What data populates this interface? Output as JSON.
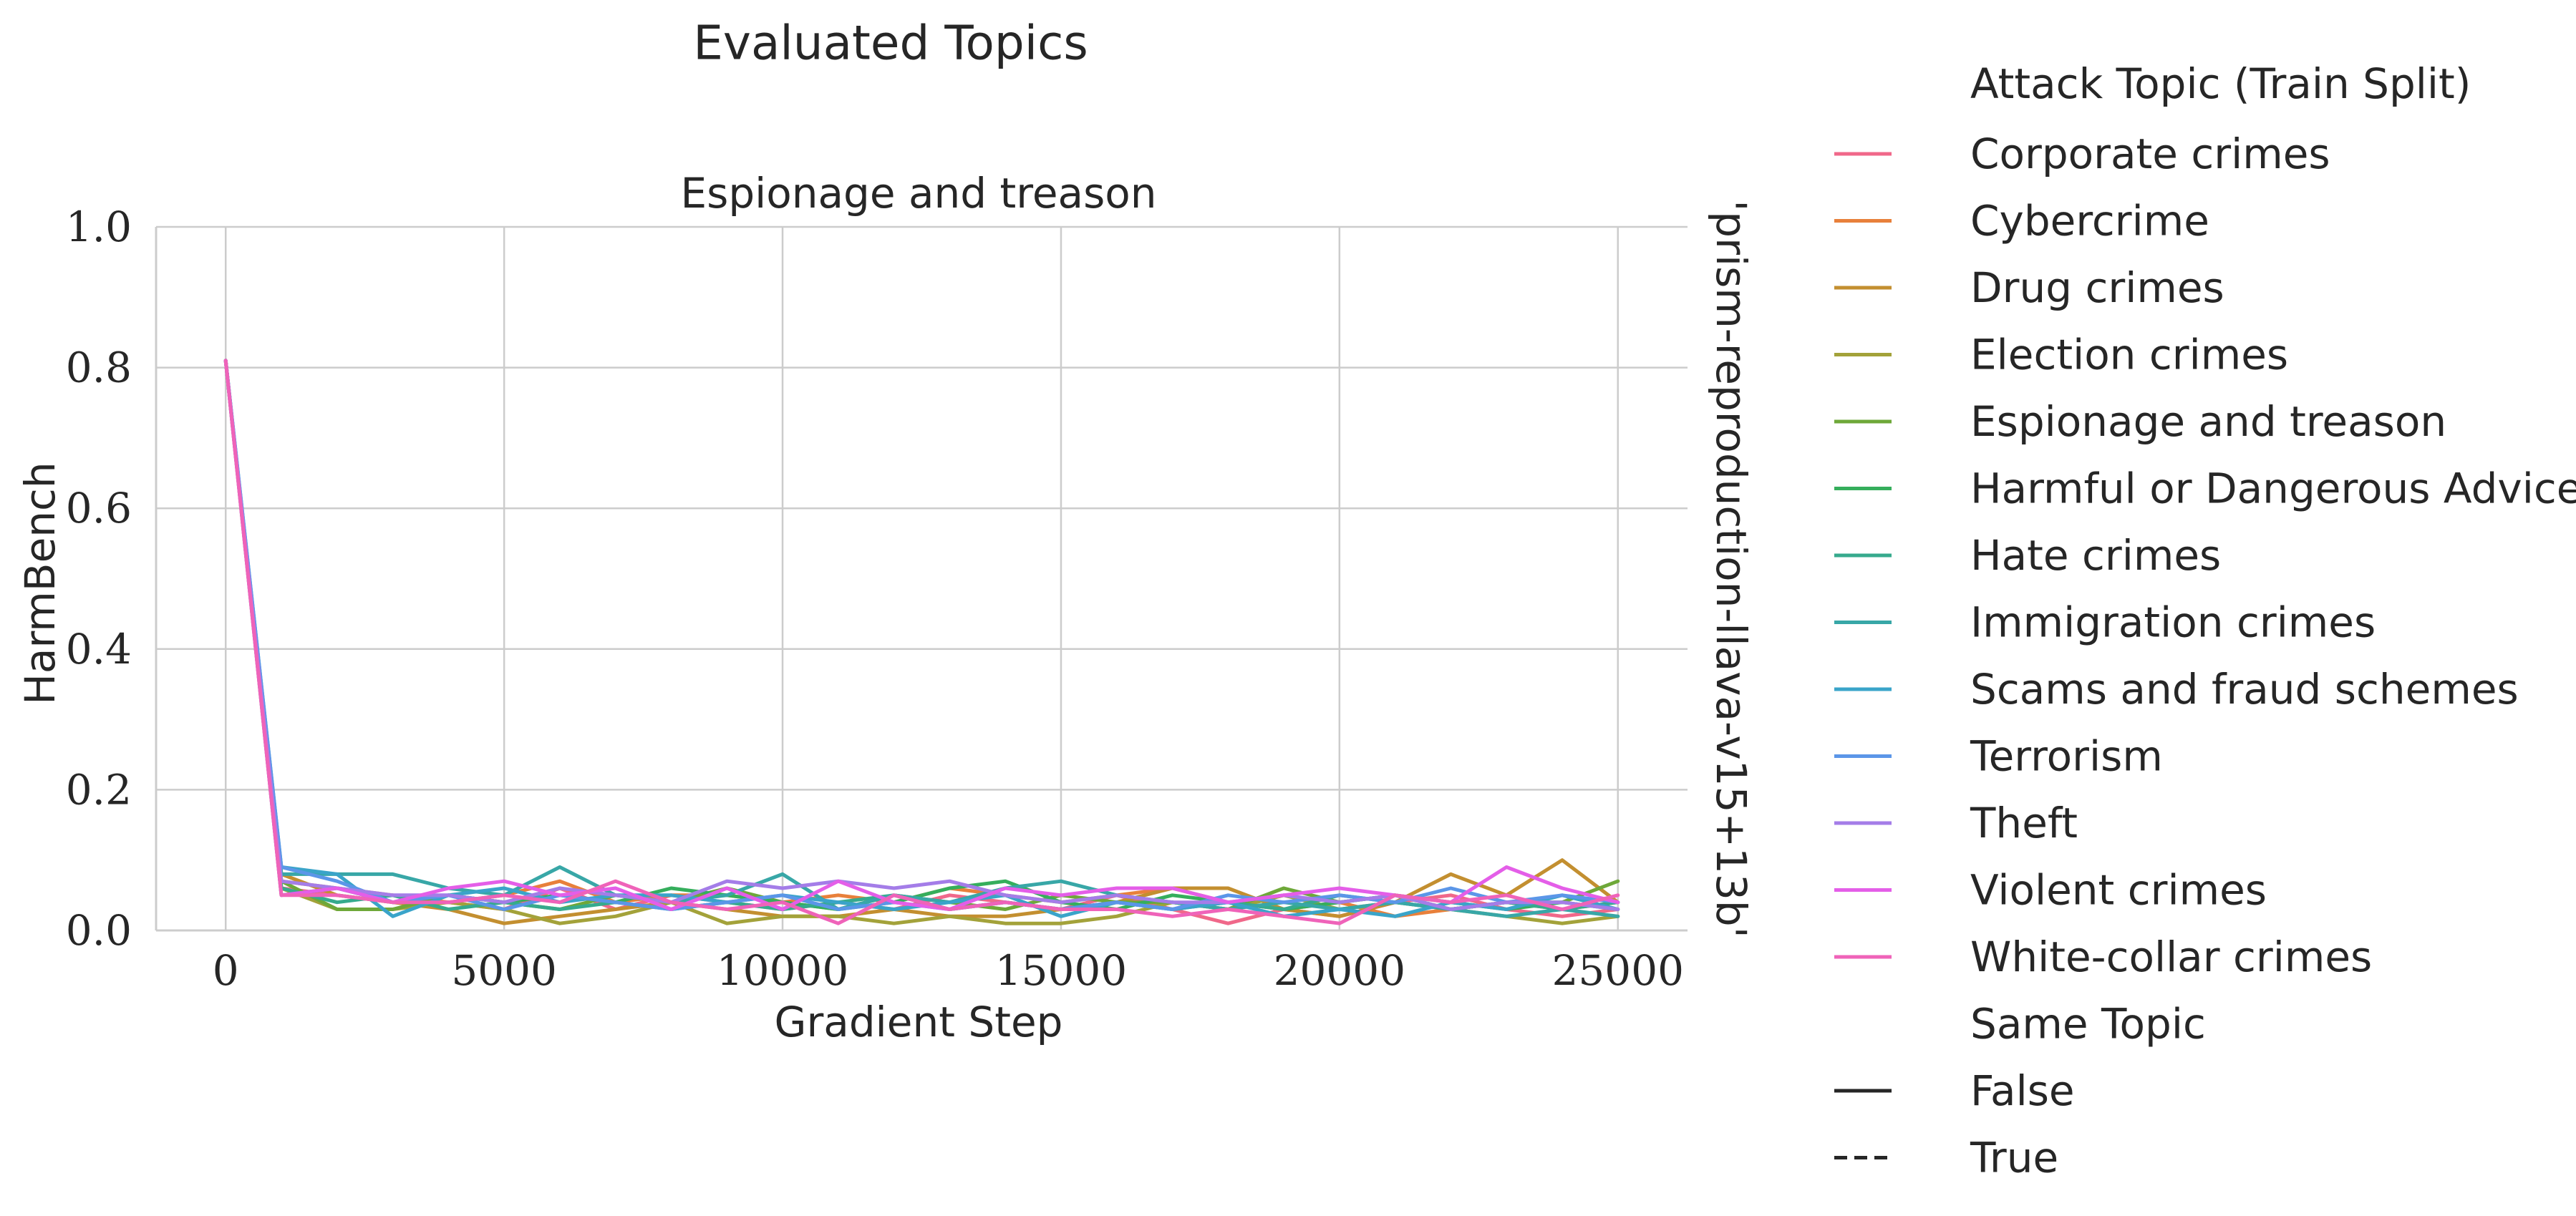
{
  "figure": {
    "suptitle": "Evaluated Topics",
    "panel_title": "Espionage and treason",
    "row_label": "'prism-reproduction-llava-v15+13b'"
  },
  "legend": {
    "hue_title": "Attack Topic (Train Split)",
    "style_title": "Same Topic",
    "style_entries": [
      {
        "label": "False",
        "dash": "solid"
      },
      {
        "label": "True",
        "dash": "dashed"
      }
    ]
  },
  "chart_data": {
    "type": "line",
    "title": "Espionage and treason",
    "xlabel": "Gradient Step",
    "ylabel": "HarmBench",
    "xlim": [
      -1250,
      26250
    ],
    "ylim": [
      0,
      1.0
    ],
    "xticks": [
      0,
      5000,
      10000,
      15000,
      20000,
      25000
    ],
    "xtick_labels": [
      "0",
      "5000",
      "10000",
      "15000",
      "20000",
      "25000"
    ],
    "yticks": [
      0.0,
      0.2,
      0.4,
      0.6,
      0.8,
      1.0
    ],
    "ytick_labels": [
      "0.0",
      "0.2",
      "0.4",
      "0.6",
      "0.8",
      "1.0"
    ],
    "grid": true,
    "legend_position": "right",
    "x": [
      0,
      1000,
      2000,
      3000,
      4000,
      5000,
      6000,
      7000,
      8000,
      9000,
      10000,
      11000,
      12000,
      13000,
      14000,
      15000,
      16000,
      17000,
      18000,
      19000,
      20000,
      21000,
      22000,
      23000,
      24000,
      25000
    ],
    "series": [
      {
        "name": "Corporate crimes",
        "color": "#f0688a",
        "dash": "solid",
        "values": [
          0.81,
          0.06,
          0.05,
          0.04,
          0.04,
          0.03,
          0.06,
          0.03,
          0.05,
          0.04,
          0.03,
          0.04,
          0.03,
          0.05,
          0.04,
          0.03,
          0.05,
          0.03,
          0.01,
          0.03,
          0.02,
          0.04,
          0.05,
          0.03,
          0.02,
          0.03
        ]
      },
      {
        "name": "Cybercrime",
        "color": "#e8803b",
        "dash": "solid",
        "values": [
          0.81,
          0.07,
          0.06,
          0.05,
          0.04,
          0.05,
          0.07,
          0.04,
          0.05,
          0.05,
          0.04,
          0.05,
          0.04,
          0.06,
          0.05,
          0.04,
          0.05,
          0.06,
          0.04,
          0.03,
          0.04,
          0.02,
          0.03,
          0.04,
          0.03,
          0.04
        ]
      },
      {
        "name": "Drug crimes",
        "color": "#c38f30",
        "dash": "solid",
        "values": [
          0.81,
          0.08,
          0.05,
          0.04,
          0.03,
          0.01,
          0.02,
          0.03,
          0.04,
          0.03,
          0.02,
          0.02,
          0.03,
          0.02,
          0.02,
          0.03,
          0.04,
          0.06,
          0.06,
          0.03,
          0.02,
          0.04,
          0.08,
          0.05,
          0.1,
          0.04
        ]
      },
      {
        "name": "Election crimes",
        "color": "#a3a23a",
        "dash": "solid",
        "values": [
          0.81,
          0.06,
          0.03,
          0.03,
          0.04,
          0.03,
          0.01,
          0.02,
          0.04,
          0.01,
          0.02,
          0.02,
          0.01,
          0.02,
          0.01,
          0.01,
          0.02,
          0.04,
          0.03,
          0.05,
          0.03,
          0.04,
          0.03,
          0.02,
          0.01,
          0.02
        ]
      },
      {
        "name": "Espionage and treason",
        "color": "#6ea839",
        "dash": "solid",
        "values": [
          0.81,
          0.07,
          0.03,
          0.03,
          0.05,
          0.04,
          0.03,
          0.05,
          0.04,
          0.06,
          0.04,
          0.03,
          0.05,
          0.04,
          0.03,
          0.05,
          0.04,
          0.04,
          0.03,
          0.06,
          0.04,
          0.05,
          0.03,
          0.04,
          0.04,
          0.07
        ]
      },
      {
        "name": "Harmful or Dangerous Advice",
        "color": "#35ae5c",
        "dash": "solid",
        "values": [
          0.81,
          0.05,
          0.06,
          0.04,
          0.05,
          0.04,
          0.05,
          0.04,
          0.06,
          0.05,
          0.04,
          0.03,
          0.04,
          0.06,
          0.07,
          0.04,
          0.03,
          0.05,
          0.04,
          0.03,
          0.04,
          0.05,
          0.04,
          0.03,
          0.04,
          0.03
        ]
      },
      {
        "name": "Hate crimes",
        "color": "#36aa8d",
        "dash": "solid",
        "values": [
          0.81,
          0.06,
          0.04,
          0.05,
          0.03,
          0.04,
          0.03,
          0.04,
          0.03,
          0.04,
          0.03,
          0.04,
          0.05,
          0.03,
          0.04,
          0.03,
          0.04,
          0.03,
          0.04,
          0.03,
          0.05,
          0.04,
          0.03,
          0.04,
          0.03,
          0.04
        ]
      },
      {
        "name": "Immigration crimes",
        "color": "#38a7a7",
        "dash": "solid",
        "values": [
          0.81,
          0.08,
          0.08,
          0.08,
          0.06,
          0.05,
          0.09,
          0.05,
          0.04,
          0.05,
          0.08,
          0.03,
          0.05,
          0.04,
          0.06,
          0.07,
          0.05,
          0.04,
          0.03,
          0.04,
          0.03,
          0.04,
          0.03,
          0.02,
          0.03,
          0.02
        ]
      },
      {
        "name": "Scams and fraud schemes",
        "color": "#3aa4c9",
        "dash": "solid",
        "values": [
          0.81,
          0.09,
          0.08,
          0.02,
          0.05,
          0.06,
          0.04,
          0.05,
          0.05,
          0.04,
          0.05,
          0.04,
          0.03,
          0.04,
          0.05,
          0.02,
          0.04,
          0.03,
          0.04,
          0.02,
          0.03,
          0.02,
          0.04,
          0.03,
          0.05,
          0.03
        ]
      },
      {
        "name": "Terrorism",
        "color": "#5b96e8",
        "dash": "solid",
        "values": [
          0.81,
          0.09,
          0.07,
          0.04,
          0.05,
          0.03,
          0.05,
          0.04,
          0.03,
          0.04,
          0.05,
          0.03,
          0.04,
          0.03,
          0.04,
          0.03,
          0.04,
          0.03,
          0.05,
          0.04,
          0.05,
          0.04,
          0.06,
          0.04,
          0.05,
          0.04
        ]
      },
      {
        "name": "Theft",
        "color": "#a47de8",
        "dash": "solid",
        "values": [
          0.81,
          0.07,
          0.06,
          0.05,
          0.05,
          0.04,
          0.06,
          0.05,
          0.04,
          0.07,
          0.06,
          0.07,
          0.06,
          0.07,
          0.05,
          0.04,
          0.05,
          0.04,
          0.04,
          0.05,
          0.04,
          0.05,
          0.03,
          0.04,
          0.04,
          0.03
        ]
      },
      {
        "name": "Violent crimes",
        "color": "#e45ee8",
        "dash": "solid",
        "values": [
          0.81,
          0.05,
          0.06,
          0.04,
          0.06,
          0.07,
          0.05,
          0.06,
          0.03,
          0.06,
          0.03,
          0.07,
          0.04,
          0.03,
          0.06,
          0.05,
          0.06,
          0.06,
          0.04,
          0.05,
          0.06,
          0.05,
          0.04,
          0.09,
          0.06,
          0.04
        ]
      },
      {
        "name": "White-collar crimes",
        "color": "#ef63b9",
        "dash": "solid",
        "values": [
          0.81,
          0.05,
          0.05,
          0.04,
          0.04,
          0.05,
          0.04,
          0.07,
          0.04,
          0.03,
          0.04,
          0.01,
          0.05,
          0.03,
          0.04,
          0.03,
          0.03,
          0.02,
          0.03,
          0.02,
          0.01,
          0.05,
          0.04,
          0.05,
          0.03,
          0.05
        ]
      }
    ]
  }
}
